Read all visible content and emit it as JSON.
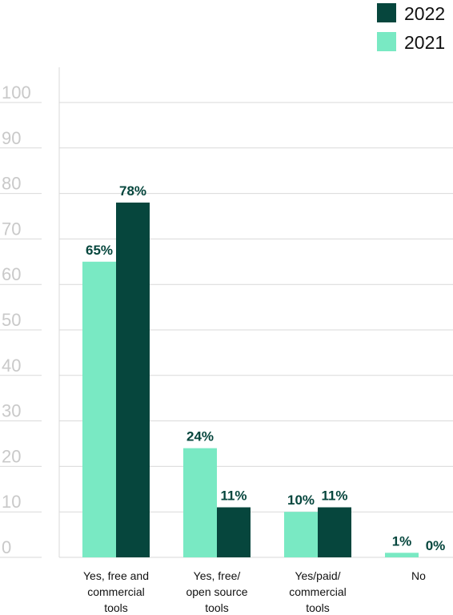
{
  "chart_data": {
    "type": "bar",
    "categories": [
      [
        "Yes, free and",
        "commercial",
        "tools"
      ],
      [
        "Yes, free/",
        "open source",
        "tools"
      ],
      [
        "Yes/paid/",
        "commercial",
        "tools"
      ],
      [
        "No"
      ]
    ],
    "series": [
      {
        "name": "2021",
        "values": [
          65,
          24,
          10,
          1
        ],
        "labels": [
          "65%",
          "24%",
          "10%",
          "1%"
        ]
      },
      {
        "name": "2022",
        "values": [
          78,
          11,
          11,
          0
        ],
        "labels": [
          "78%",
          "11%",
          "11%",
          "0%"
        ]
      }
    ],
    "legend_order": [
      "2022",
      "2021"
    ],
    "legend_position": "top-right",
    "yticks": [
      "0",
      "10",
      "20",
      "30",
      "40",
      "50",
      "60",
      "70",
      "80",
      "90",
      "100"
    ],
    "ylim": [
      0,
      100
    ],
    "grid": true,
    "colors": {
      "2021": "#79e9c3",
      "2022": "#06463d"
    }
  }
}
